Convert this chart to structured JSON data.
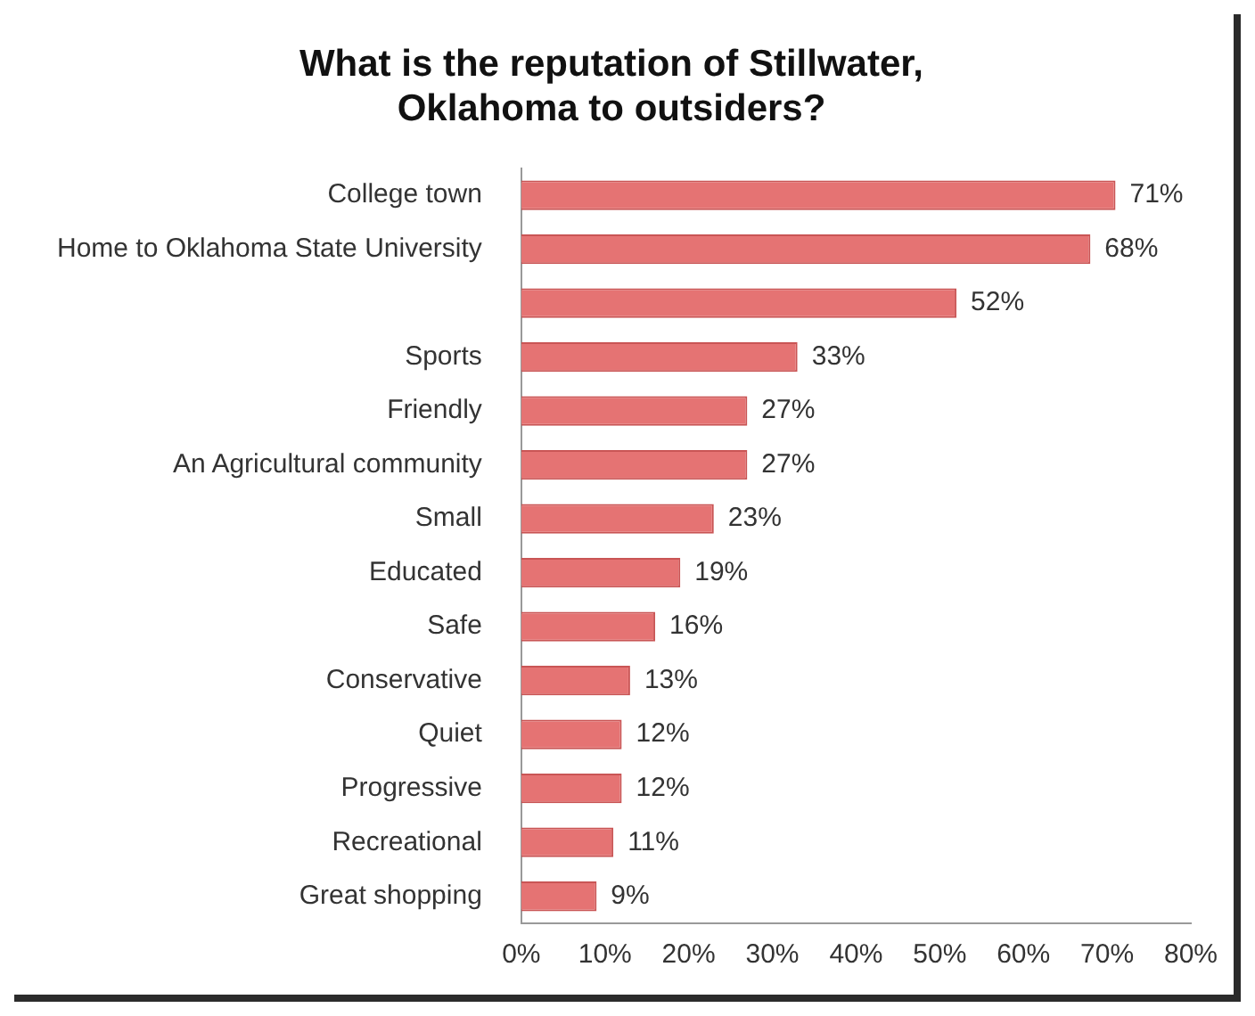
{
  "chart_data": {
    "type": "bar",
    "orientation": "horizontal",
    "title": "What is the reputation of Stillwater, Oklahoma to outsiders?",
    "categories": [
      "College town",
      "Home to Oklahoma State University",
      null,
      "Sports",
      "Friendly",
      "An Agricultural community",
      "Small",
      "Educated",
      "Safe",
      "Conservative",
      "Quiet",
      "Progressive",
      "Recreational",
      "Great shopping"
    ],
    "values": [
      71,
      68,
      52,
      33,
      27,
      27,
      23,
      19,
      16,
      13,
      12,
      12,
      11,
      9
    ],
    "value_labels": [
      "71%",
      "68%",
      "52%",
      "33%",
      "27%",
      "27%",
      "23%",
      "19%",
      "16%",
      "13%",
      "12%",
      "12%",
      "11%",
      "9%"
    ],
    "color": "#e57373",
    "xlim": [
      0,
      80
    ],
    "xticks": [
      {
        "value": 0,
        "label": "0%"
      },
      {
        "value": 10,
        "label": "10%"
      },
      {
        "value": 20,
        "label": "20%"
      },
      {
        "value": 30,
        "label": "30%"
      },
      {
        "value": 40,
        "label": "40%"
      },
      {
        "value": 50,
        "label": "50%"
      },
      {
        "value": 60,
        "label": "60%"
      },
      {
        "value": 70,
        "label": "70%"
      },
      {
        "value": 80,
        "label": "80%"
      }
    ],
    "grid": false,
    "legend": false
  }
}
